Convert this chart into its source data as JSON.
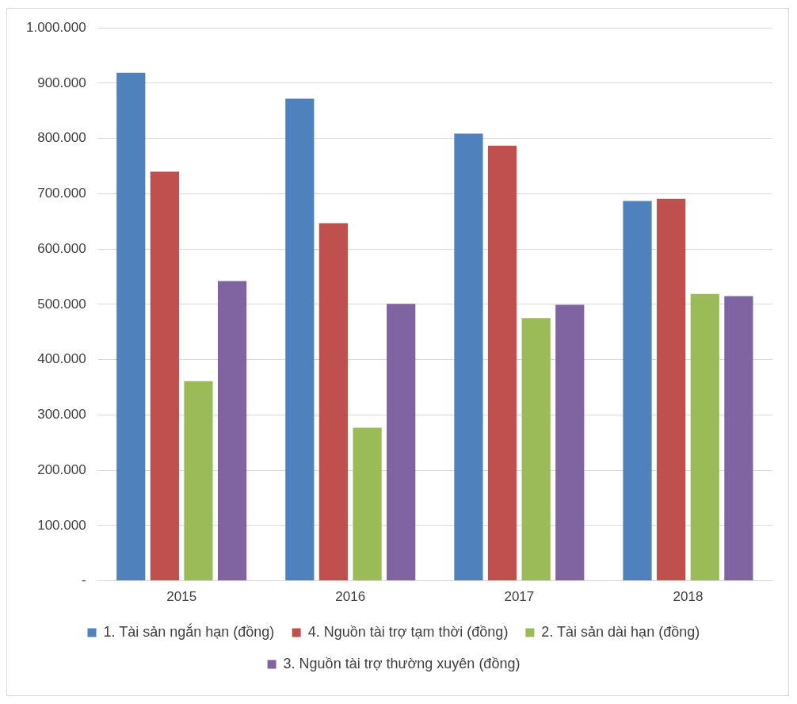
{
  "chart_data": {
    "type": "bar",
    "categories": [
      "2015",
      "2016",
      "2017",
      "2018"
    ],
    "series": [
      {
        "name": "1. Tài sản ngắn hạn (đồng)",
        "color": "#4f81bd",
        "values": [
          919000,
          872000,
          809000,
          687000
        ]
      },
      {
        "name": "4. Nguồn tài trợ tạm thời (đồng)",
        "color": "#c0504d",
        "values": [
          740000,
          647000,
          787000,
          691000
        ]
      },
      {
        "name": "2. Tài sản dài hạn (đồng)",
        "color": "#9bbb59",
        "values": [
          361000,
          277000,
          475000,
          519000
        ]
      },
      {
        "name": "3. Nguồn tài trợ thường xuyên (đồng)",
        "color": "#8064a2",
        "values": [
          542000,
          501000,
          499000,
          515000
        ]
      }
    ],
    "ylim": [
      0,
      1000000
    ],
    "yticks": [
      {
        "value": 0,
        "label": "-"
      },
      {
        "value": 100000,
        "label": "100.000"
      },
      {
        "value": 200000,
        "label": "200.000"
      },
      {
        "value": 300000,
        "label": "300.000"
      },
      {
        "value": 400000,
        "label": "400.000"
      },
      {
        "value": 500000,
        "label": "500.000"
      },
      {
        "value": 600000,
        "label": "600.000"
      },
      {
        "value": 700000,
        "label": "700.000"
      },
      {
        "value": 800000,
        "label": "800.000"
      },
      {
        "value": 900000,
        "label": "900.000"
      },
      {
        "value": 1000000,
        "label": "1.000.000"
      }
    ],
    "grid": "y",
    "legend": "bottom"
  }
}
